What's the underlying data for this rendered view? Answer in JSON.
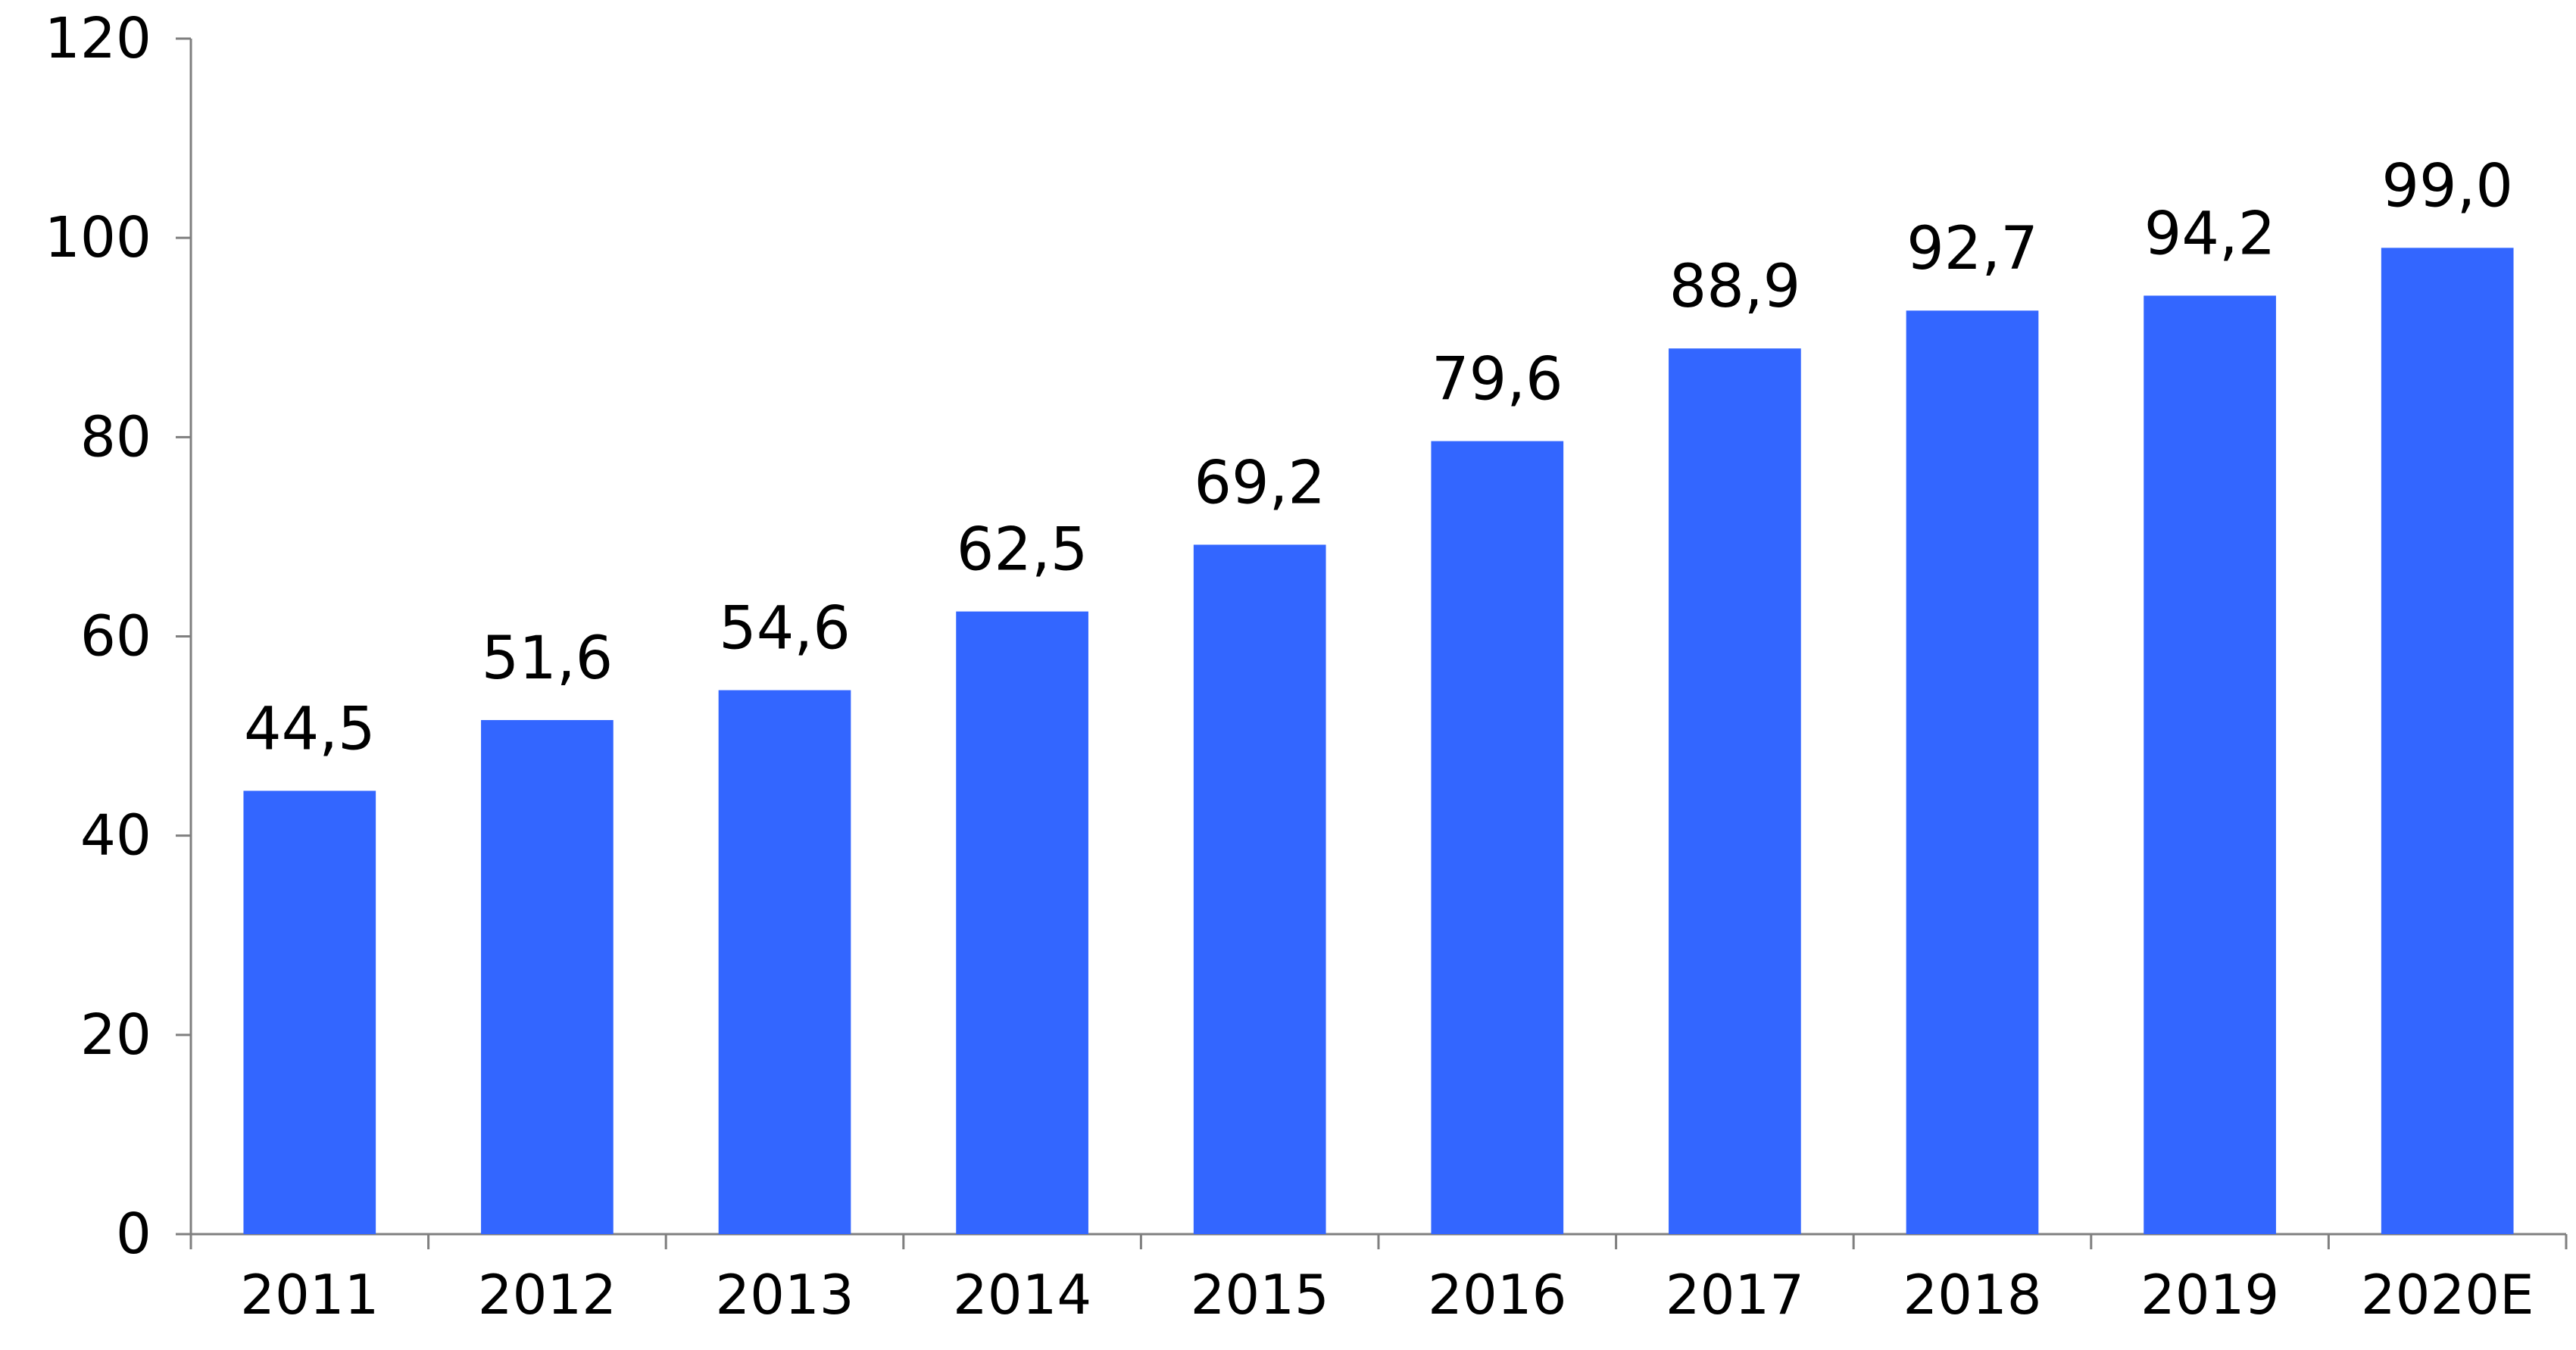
{
  "chart_data": {
    "type": "bar",
    "categories": [
      "2011",
      "2012",
      "2013",
      "2014",
      "2015",
      "2016",
      "2017",
      "2018",
      "2019",
      "2020E"
    ],
    "values": [
      44.5,
      51.6,
      54.6,
      62.5,
      69.2,
      79.6,
      88.9,
      92.7,
      94.2,
      99.0
    ],
    "data_labels": [
      "44,5",
      "51,6",
      "54,6",
      "62,5",
      "69,2",
      "79,6",
      "88,9",
      "92,7",
      "94,2",
      "99,0"
    ],
    "y_ticks": [
      "0",
      "20",
      "40",
      "60",
      "80",
      "100",
      "120"
    ],
    "ylim": [
      0,
      120
    ],
    "title": "",
    "xlabel": "",
    "ylabel": "",
    "grid": false,
    "legend": "none",
    "bar_color": "#3366ff"
  }
}
